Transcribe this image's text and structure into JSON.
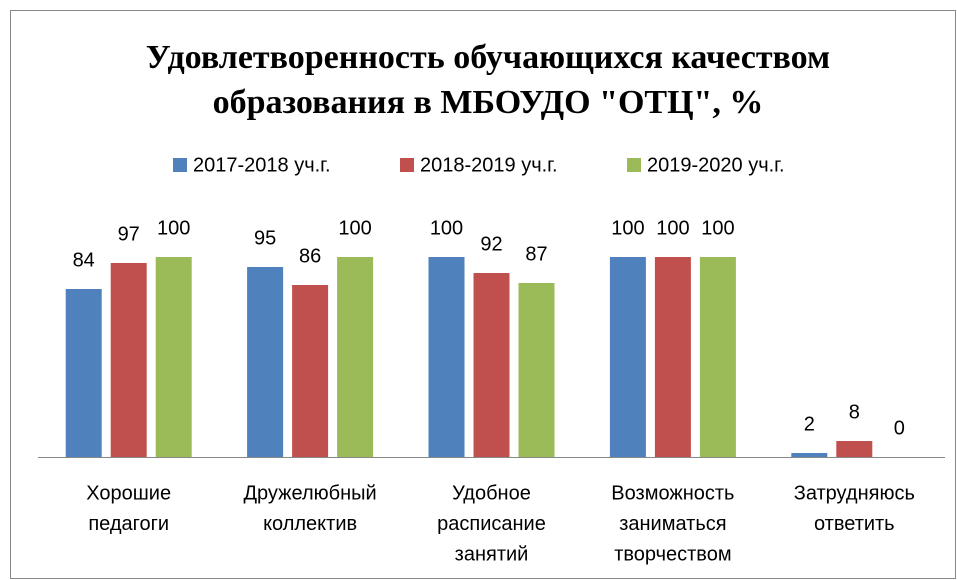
{
  "chart_data": {
    "type": "bar",
    "title": [
      "Удовлетворенность обучающихся качеством",
      "образования в МБОУДО \"ОТЦ\", %"
    ],
    "categories": [
      [
        "Хорошие",
        "педагоги"
      ],
      [
        "Дружелюбный",
        "коллектив"
      ],
      [
        "Удобное",
        "расписание",
        "занятий"
      ],
      [
        "Возможность",
        "заниматься",
        "творчеством"
      ],
      [
        "Затрудняюсь",
        "ответить"
      ]
    ],
    "series": [
      {
        "name": "2017-2018 уч.г.",
        "color": "#4f81bd",
        "values": [
          84,
          95,
          100,
          100,
          2
        ]
      },
      {
        "name": "2018-2019 уч.г.",
        "color": "#c0504d",
        "values": [
          97,
          86,
          92,
          100,
          8
        ]
      },
      {
        "name": "2019-2020 уч.г.",
        "color": "#9bbb59",
        "values": [
          100,
          100,
          87,
          100,
          0
        ]
      }
    ],
    "legend": "top"
  }
}
